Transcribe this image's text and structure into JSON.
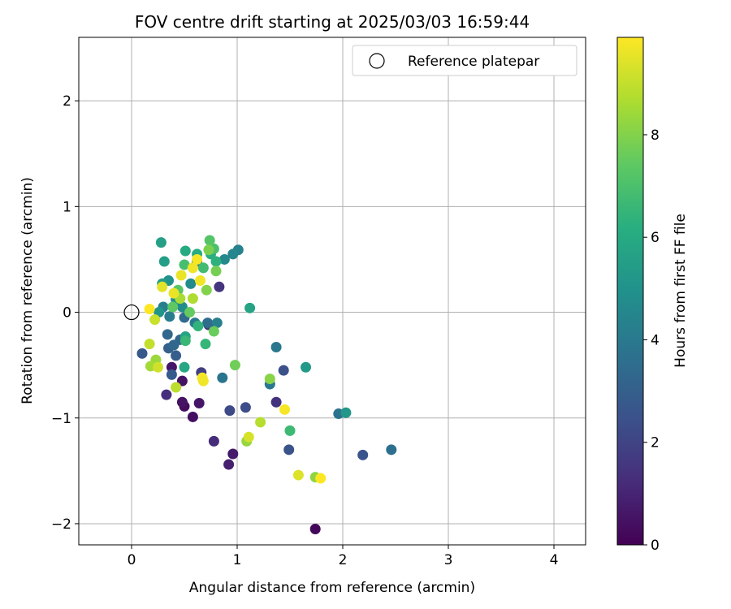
{
  "chart_data": {
    "type": "scatter",
    "title": "FOV centre drift starting at 2025/03/03 16:59:44",
    "xlabel": "Angular distance from reference (arcmin)",
    "ylabel": "Rotation from reference (arcmin)",
    "xlim": [
      -0.5,
      4.3
    ],
    "ylim": [
      -2.2,
      2.6
    ],
    "xticks": [
      0,
      1,
      2,
      3,
      4
    ],
    "yticks": [
      -2,
      -1,
      0,
      1,
      2
    ],
    "grid": true,
    "legend": {
      "placement": "top-right",
      "entries": [
        "Reference platepar"
      ]
    },
    "reference_point": {
      "x": 0,
      "y": 0,
      "label": "Reference platepar"
    },
    "colorbar": {
      "label": "Hours from first FF file",
      "range": [
        0,
        9.9
      ],
      "ticks": [
        0,
        2,
        4,
        6,
        8
      ],
      "colormap": "viridis"
    },
    "points": [
      {
        "x": 1.74,
        "y": -2.05,
        "c": 0.2
      },
      {
        "x": 0.5,
        "y": -0.89,
        "c": 0.3
      },
      {
        "x": 0.58,
        "y": -0.99,
        "c": 0.4
      },
      {
        "x": 0.48,
        "y": -0.85,
        "c": 0.5
      },
      {
        "x": 0.64,
        "y": -0.86,
        "c": 0.6
      },
      {
        "x": 0.48,
        "y": -0.65,
        "c": 0.5
      },
      {
        "x": 0.38,
        "y": -0.52,
        "c": 0.6
      },
      {
        "x": 0.96,
        "y": -1.34,
        "c": 0.7
      },
      {
        "x": 0.92,
        "y": -1.44,
        "c": 0.9
      },
      {
        "x": 0.78,
        "y": -1.22,
        "c": 1.2
      },
      {
        "x": 0.33,
        "y": -0.78,
        "c": 1.3
      },
      {
        "x": 1.37,
        "y": -0.85,
        "c": 1.4
      },
      {
        "x": 0.83,
        "y": 0.24,
        "c": 1.5
      },
      {
        "x": 0.73,
        "y": -0.12,
        "c": 1.6
      },
      {
        "x": 0.66,
        "y": -0.57,
        "c": 1.8
      },
      {
        "x": 0.93,
        "y": -0.93,
        "c": 2.2
      },
      {
        "x": 1.08,
        "y": -0.9,
        "c": 2.3
      },
      {
        "x": 1.44,
        "y": -0.55,
        "c": 2.4
      },
      {
        "x": 1.49,
        "y": -1.3,
        "c": 2.5
      },
      {
        "x": 2.19,
        "y": -1.35,
        "c": 2.6
      },
      {
        "x": 0.1,
        "y": -0.39,
        "c": 2.7
      },
      {
        "x": 0.38,
        "y": -0.59,
        "c": 2.8
      },
      {
        "x": 0.42,
        "y": -0.41,
        "c": 2.9
      },
      {
        "x": 0.35,
        "y": -0.34,
        "c": 3.0
      },
      {
        "x": 0.46,
        "y": -0.26,
        "c": 3.2
      },
      {
        "x": 0.34,
        "y": -0.21,
        "c": 3.3
      },
      {
        "x": 0.4,
        "y": -0.31,
        "c": 3.3
      },
      {
        "x": 0.5,
        "y": -0.05,
        "c": 3.4
      },
      {
        "x": 0.72,
        "y": -0.1,
        "c": 3.5
      },
      {
        "x": 0.62,
        "y": 0.48,
        "c": 3.5
      },
      {
        "x": 2.46,
        "y": -1.3,
        "c": 3.6
      },
      {
        "x": 1.96,
        "y": -0.96,
        "c": 3.7
      },
      {
        "x": 0.86,
        "y": -0.62,
        "c": 3.8
      },
      {
        "x": 1.37,
        "y": -0.33,
        "c": 3.9
      },
      {
        "x": 1.31,
        "y": -0.68,
        "c": 4.0
      },
      {
        "x": 0.6,
        "y": -0.1,
        "c": 4.0
      },
      {
        "x": 0.36,
        "y": -0.04,
        "c": 4.1
      },
      {
        "x": 0.3,
        "y": 0.05,
        "c": 4.2
      },
      {
        "x": 0.81,
        "y": -0.1,
        "c": 4.3
      },
      {
        "x": 1.01,
        "y": 0.59,
        "c": 4.4
      },
      {
        "x": 0.96,
        "y": 0.55,
        "c": 4.5
      },
      {
        "x": 0.88,
        "y": 0.5,
        "c": 4.6
      },
      {
        "x": 0.56,
        "y": 0.27,
        "c": 4.7
      },
      {
        "x": 0.48,
        "y": 0.05,
        "c": 4.8
      },
      {
        "x": 0.42,
        "y": 0.12,
        "c": 4.9
      },
      {
        "x": 0.35,
        "y": 0.3,
        "c": 5.0
      },
      {
        "x": 0.26,
        "y": 0.0,
        "c": 5.1
      },
      {
        "x": 2.03,
        "y": -0.95,
        "c": 5.2
      },
      {
        "x": 1.65,
        "y": -0.52,
        "c": 5.3
      },
      {
        "x": 0.29,
        "y": 0.27,
        "c": 5.4
      },
      {
        "x": 0.31,
        "y": 0.48,
        "c": 5.5
      },
      {
        "x": 0.28,
        "y": 0.66,
        "c": 5.6
      },
      {
        "x": 1.12,
        "y": 0.04,
        "c": 5.7
      },
      {
        "x": 0.51,
        "y": -0.23,
        "c": 5.8
      },
      {
        "x": 0.5,
        "y": -0.52,
        "c": 5.9
      },
      {
        "x": 0.51,
        "y": 0.58,
        "c": 6.0
      },
      {
        "x": 0.62,
        "y": 0.55,
        "c": 6.1
      },
      {
        "x": 0.75,
        "y": 0.55,
        "c": 6.2
      },
      {
        "x": 0.8,
        "y": 0.48,
        "c": 6.3
      },
      {
        "x": 0.63,
        "y": -0.13,
        "c": 6.4
      },
      {
        "x": 0.7,
        "y": -0.3,
        "c": 6.5
      },
      {
        "x": 0.51,
        "y": -0.27,
        "c": 6.6
      },
      {
        "x": 1.5,
        "y": -1.12,
        "c": 6.7
      },
      {
        "x": 0.68,
        "y": 0.42,
        "c": 6.8
      },
      {
        "x": 0.5,
        "y": 0.45,
        "c": 6.9
      },
      {
        "x": 0.78,
        "y": 0.6,
        "c": 7.0
      },
      {
        "x": 0.74,
        "y": 0.68,
        "c": 7.2
      },
      {
        "x": 0.44,
        "y": 0.21,
        "c": 7.3
      },
      {
        "x": 0.39,
        "y": 0.05,
        "c": 7.4
      },
      {
        "x": 0.55,
        "y": 0.0,
        "c": 7.5
      },
      {
        "x": 0.78,
        "y": -0.18,
        "c": 7.6
      },
      {
        "x": 0.98,
        "y": -0.5,
        "c": 7.7
      },
      {
        "x": 0.8,
        "y": 0.39,
        "c": 7.8
      },
      {
        "x": 0.73,
        "y": 0.59,
        "c": 7.9
      },
      {
        "x": 0.71,
        "y": 0.21,
        "c": 8.0
      },
      {
        "x": 1.31,
        "y": -0.63,
        "c": 8.1
      },
      {
        "x": 1.74,
        "y": -1.56,
        "c": 8.2
      },
      {
        "x": 1.09,
        "y": -1.22,
        "c": 8.3
      },
      {
        "x": 0.23,
        "y": -0.45,
        "c": 8.4
      },
      {
        "x": 0.18,
        "y": -0.51,
        "c": 8.5
      },
      {
        "x": 0.46,
        "y": 0.13,
        "c": 8.6
      },
      {
        "x": 0.58,
        "y": 0.13,
        "c": 8.7
      },
      {
        "x": 1.22,
        "y": -1.04,
        "c": 8.8
      },
      {
        "x": 0.42,
        "y": -0.71,
        "c": 8.9
      },
      {
        "x": 0.17,
        "y": -0.3,
        "c": 9.0
      },
      {
        "x": 0.22,
        "y": -0.07,
        "c": 9.1
      },
      {
        "x": 0.25,
        "y": -0.52,
        "c": 9.2
      },
      {
        "x": 1.11,
        "y": -1.18,
        "c": 9.3
      },
      {
        "x": 1.58,
        "y": -1.54,
        "c": 9.4
      },
      {
        "x": 0.29,
        "y": 0.24,
        "c": 9.5
      },
      {
        "x": 0.4,
        "y": 0.18,
        "c": 9.6
      },
      {
        "x": 0.47,
        "y": 0.35,
        "c": 9.6
      },
      {
        "x": 0.58,
        "y": 0.42,
        "c": 9.7
      },
      {
        "x": 0.65,
        "y": 0.3,
        "c": 9.7
      },
      {
        "x": 0.62,
        "y": 0.5,
        "c": 9.8
      },
      {
        "x": 0.67,
        "y": -0.62,
        "c": 9.8
      },
      {
        "x": 1.45,
        "y": -0.92,
        "c": 9.8
      },
      {
        "x": 1.79,
        "y": -1.57,
        "c": 9.9
      },
      {
        "x": 0.17,
        "y": 0.03,
        "c": 9.9
      },
      {
        "x": 0.68,
        "y": -0.65,
        "c": 9.7
      }
    ]
  }
}
